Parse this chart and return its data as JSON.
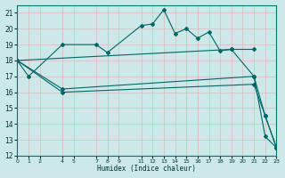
{
  "xlabel": "Humidex (Indice chaleur)",
  "bg_color": "#cce8e8",
  "grid_color": "#b0d4d4",
  "line_color": "#006666",
  "xlim": [
    0,
    23
  ],
  "ylim": [
    12,
    21.5
  ],
  "xticks": [
    0,
    1,
    2,
    4,
    5,
    7,
    8,
    9,
    11,
    12,
    13,
    14,
    15,
    16,
    17,
    18,
    19,
    20,
    21,
    22,
    23
  ],
  "yticks": [
    12,
    13,
    14,
    15,
    16,
    17,
    18,
    19,
    20,
    21
  ],
  "series": [
    {
      "x": [
        0,
        1,
        4,
        7,
        8,
        11,
        12,
        13,
        14,
        15,
        16,
        17,
        18,
        19,
        21
      ],
      "y": [
        18.0,
        17.0,
        19.0,
        19.0,
        18.5,
        20.2,
        20.3,
        21.2,
        19.7,
        20.0,
        19.4,
        19.8,
        18.6,
        18.7,
        18.7
      ]
    },
    {
      "x": [
        0,
        19,
        21,
        22,
        23
      ],
      "y": [
        18.0,
        18.7,
        17.0,
        14.5,
        12.5
      ]
    },
    {
      "x": [
        0,
        4,
        21,
        22,
        23
      ],
      "y": [
        18.0,
        16.2,
        17.0,
        13.2,
        12.5
      ]
    },
    {
      "x": [
        0,
        4,
        21,
        22,
        23
      ],
      "y": [
        18.0,
        16.0,
        16.5,
        14.5,
        12.5
      ]
    }
  ]
}
